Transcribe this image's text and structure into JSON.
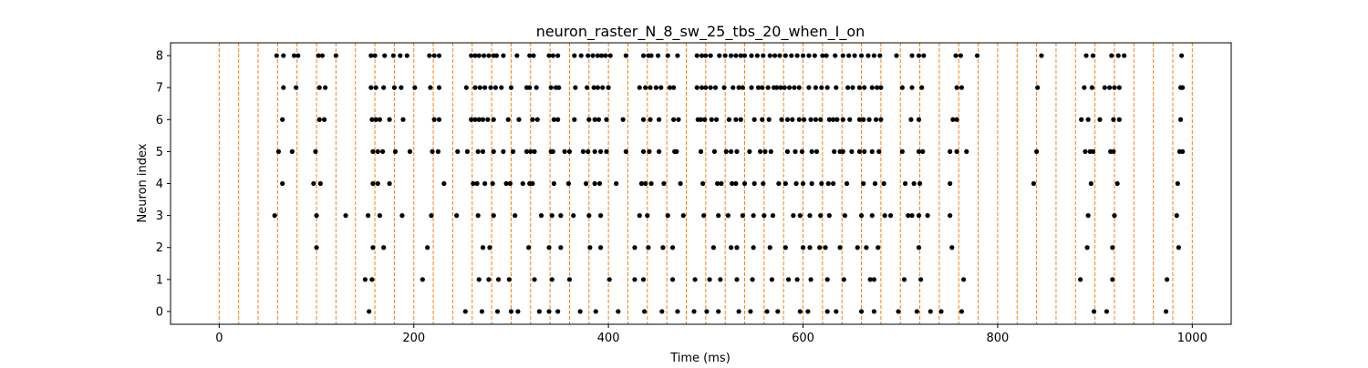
{
  "chart_data": {
    "type": "scatter",
    "title": "neuron_raster_N_8_sw_25_tbs_20_when_I_on",
    "xlabel": "Time (ms)",
    "ylabel": "Neuron index",
    "xlim": [
      -50,
      1040
    ],
    "ylim": [
      -0.4,
      8.4
    ],
    "xticks": [
      0,
      200,
      400,
      600,
      800,
      1000
    ],
    "yticks": [
      0,
      1,
      2,
      3,
      4,
      5,
      6,
      7,
      8
    ],
    "grid": false,
    "marker_color": "#000000",
    "vline_color": "#ff7f0e",
    "vline_style": "dashed",
    "vlines": [
      0,
      20,
      40,
      60,
      80,
      100,
      120,
      140,
      160,
      180,
      200,
      220,
      240,
      260,
      280,
      300,
      320,
      340,
      360,
      380,
      400,
      420,
      440,
      460,
      480,
      500,
      520,
      540,
      560,
      580,
      600,
      620,
      640,
      660,
      680,
      700,
      720,
      740,
      760,
      780,
      800,
      820,
      840,
      860,
      880,
      900,
      920,
      940,
      960,
      980,
      1000
    ],
    "spikes": [
      {
        "neuron": 8,
        "times": [
          59,
          66,
          77,
          81,
          102,
          106,
          120,
          156,
          160,
          170,
          179,
          186,
          193,
          216,
          221,
          226,
          259,
          263,
          267,
          272,
          277,
          282,
          285,
          292,
          306,
          319,
          323,
          339,
          343,
          348,
          365,
          372,
          379,
          384,
          389,
          393,
          397,
          402,
          418,
          436,
          441,
          444,
          451,
          461,
          471,
          491,
          496,
          500,
          505,
          514,
          520,
          526,
          531,
          536,
          540,
          547,
          553,
          559,
          566,
          571,
          576,
          582,
          588,
          594,
          600,
          606,
          612,
          620,
          624,
          633,
          641,
          647,
          653,
          660,
          667,
          673,
          679,
          696,
          712,
          719,
          724,
          757,
          762,
          779,
          845,
          891,
          898,
          917,
          924,
          930,
          989
        ]
      },
      {
        "neuron": 7,
        "times": [
          66,
          79,
          103,
          109,
          156,
          161,
          169,
          180,
          187,
          201,
          217,
          226,
          254,
          263,
          268,
          273,
          279,
          284,
          290,
          300,
          316,
          319,
          326,
          341,
          346,
          349,
          366,
          378,
          385,
          389,
          394,
          400,
          432,
          438,
          443,
          449,
          454,
          463,
          467,
          491,
          496,
          500,
          505,
          510,
          519,
          528,
          534,
          538,
          547,
          554,
          558,
          564,
          570,
          573,
          577,
          581,
          586,
          591,
          596,
          606,
          613,
          619,
          625,
          634,
          646,
          651,
          658,
          663,
          671,
          676,
          680,
          702,
          712,
          722,
          758,
          763,
          841,
          889,
          897,
          910,
          915,
          920,
          925,
          988,
          990
        ]
      },
      {
        "neuron": 6,
        "times": [
          65,
          103,
          108,
          157,
          161,
          165,
          175,
          189,
          221,
          226,
          259,
          263,
          267,
          271,
          276,
          282,
          297,
          308,
          322,
          327,
          344,
          348,
          365,
          380,
          386,
          390,
          398,
          415,
          436,
          443,
          452,
          467,
          472,
          492,
          495,
          499,
          506,
          511,
          524,
          531,
          536,
          550,
          558,
          565,
          578,
          584,
          589,
          596,
          601,
          608,
          613,
          618,
          627,
          631,
          635,
          641,
          648,
          658,
          662,
          668,
          675,
          680,
          711,
          719,
          754,
          758,
          886,
          893,
          905,
          919,
          925,
          988
        ]
      },
      {
        "neuron": 5,
        "times": [
          61,
          75,
          99,
          158,
          163,
          168,
          181,
          196,
          219,
          225,
          245,
          255,
          266,
          271,
          282,
          292,
          302,
          316,
          320,
          324,
          341,
          343,
          355,
          360,
          374,
          379,
          386,
          392,
          398,
          418,
          436,
          442,
          452,
          468,
          470,
          495,
          509,
          521,
          526,
          532,
          545,
          556,
          561,
          567,
          584,
          592,
          599,
          609,
          614,
          632,
          638,
          641,
          650,
          658,
          663,
          671,
          678,
          702,
          719,
          723,
          751,
          758,
          768,
          840,
          890,
          895,
          898,
          916,
          919,
          987,
          990
        ]
      },
      {
        "neuron": 4,
        "times": [
          65,
          97,
          104,
          158,
          163,
          175,
          231,
          261,
          265,
          273,
          281,
          295,
          299,
          312,
          319,
          322,
          344,
          359,
          377,
          386,
          391,
          408,
          434,
          438,
          444,
          457,
          474,
          497,
          512,
          516,
          527,
          531,
          540,
          550,
          559,
          575,
          582,
          593,
          600,
          609,
          619,
          626,
          631,
          645,
          662,
          674,
          683,
          705,
          714,
          720,
          751,
          837,
          896,
          923,
          985
        ]
      },
      {
        "neuron": 3,
        "times": [
          57,
          100,
          130,
          153,
          165,
          188,
          218,
          244,
          266,
          282,
          304,
          331,
          342,
          351,
          364,
          380,
          392,
          432,
          440,
          461,
          477,
          498,
          513,
          523,
          538,
          549,
          560,
          569,
          590,
          597,
          607,
          618,
          627,
          643,
          660,
          671,
          684,
          690,
          708,
          712,
          719,
          728,
          751,
          893,
          920,
          984
        ]
      },
      {
        "neuron": 2,
        "times": [
          100,
          158,
          169,
          214,
          271,
          278,
          318,
          339,
          351,
          381,
          392,
          427,
          441,
          456,
          466,
          508,
          526,
          532,
          549,
          566,
          582,
          600,
          607,
          617,
          623,
          638,
          656,
          665,
          677,
          719,
          753,
          892,
          918,
          986
        ]
      },
      {
        "neuron": 1,
        "times": [
          150,
          157,
          209,
          267,
          277,
          287,
          298,
          324,
          342,
          360,
          401,
          427,
          436,
          466,
          489,
          504,
          515,
          532,
          548,
          568,
          585,
          594,
          608,
          625,
          642,
          669,
          673,
          704,
          721,
          765,
          885,
          918,
          974
        ]
      },
      {
        "neuron": 0,
        "times": [
          154,
          253,
          270,
          286,
          300,
          307,
          329,
          339,
          348,
          371,
          387,
          410,
          437,
          455,
          471,
          488,
          501,
          513,
          534,
          546,
          563,
          574,
          597,
          605,
          625,
          634,
          660,
          673,
          698,
          717,
          731,
          742,
          763,
          899,
          912,
          973
        ]
      }
    ]
  }
}
